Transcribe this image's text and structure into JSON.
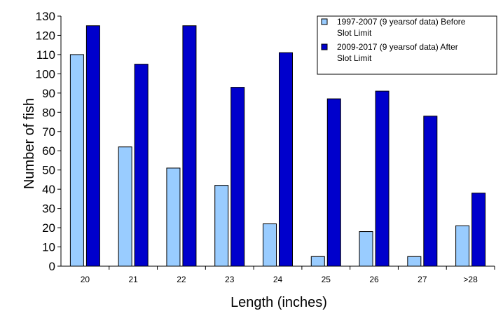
{
  "chart_data": {
    "type": "bar",
    "xlabel": "Length (inches)",
    "ylabel": "Number of fish",
    "ylim": [
      0,
      130
    ],
    "ytick_step": 10,
    "grid": false,
    "legend_position": "top-right",
    "categories": [
      "20",
      "21",
      "22",
      "23",
      "24",
      "25",
      "26",
      "27",
      ">28"
    ],
    "series": [
      {
        "name": "1997-2007 (9 yearsof data) Before Slot Limit",
        "color": "#99ccff",
        "values": [
          110,
          62,
          51,
          42,
          22,
          5,
          18,
          5,
          21
        ]
      },
      {
        "name": "2009-2017 (9 yearsof data) After Slot Limit",
        "color": "#0000cc",
        "values": [
          125,
          105,
          125,
          93,
          111,
          87,
          91,
          78,
          38
        ]
      }
    ]
  }
}
